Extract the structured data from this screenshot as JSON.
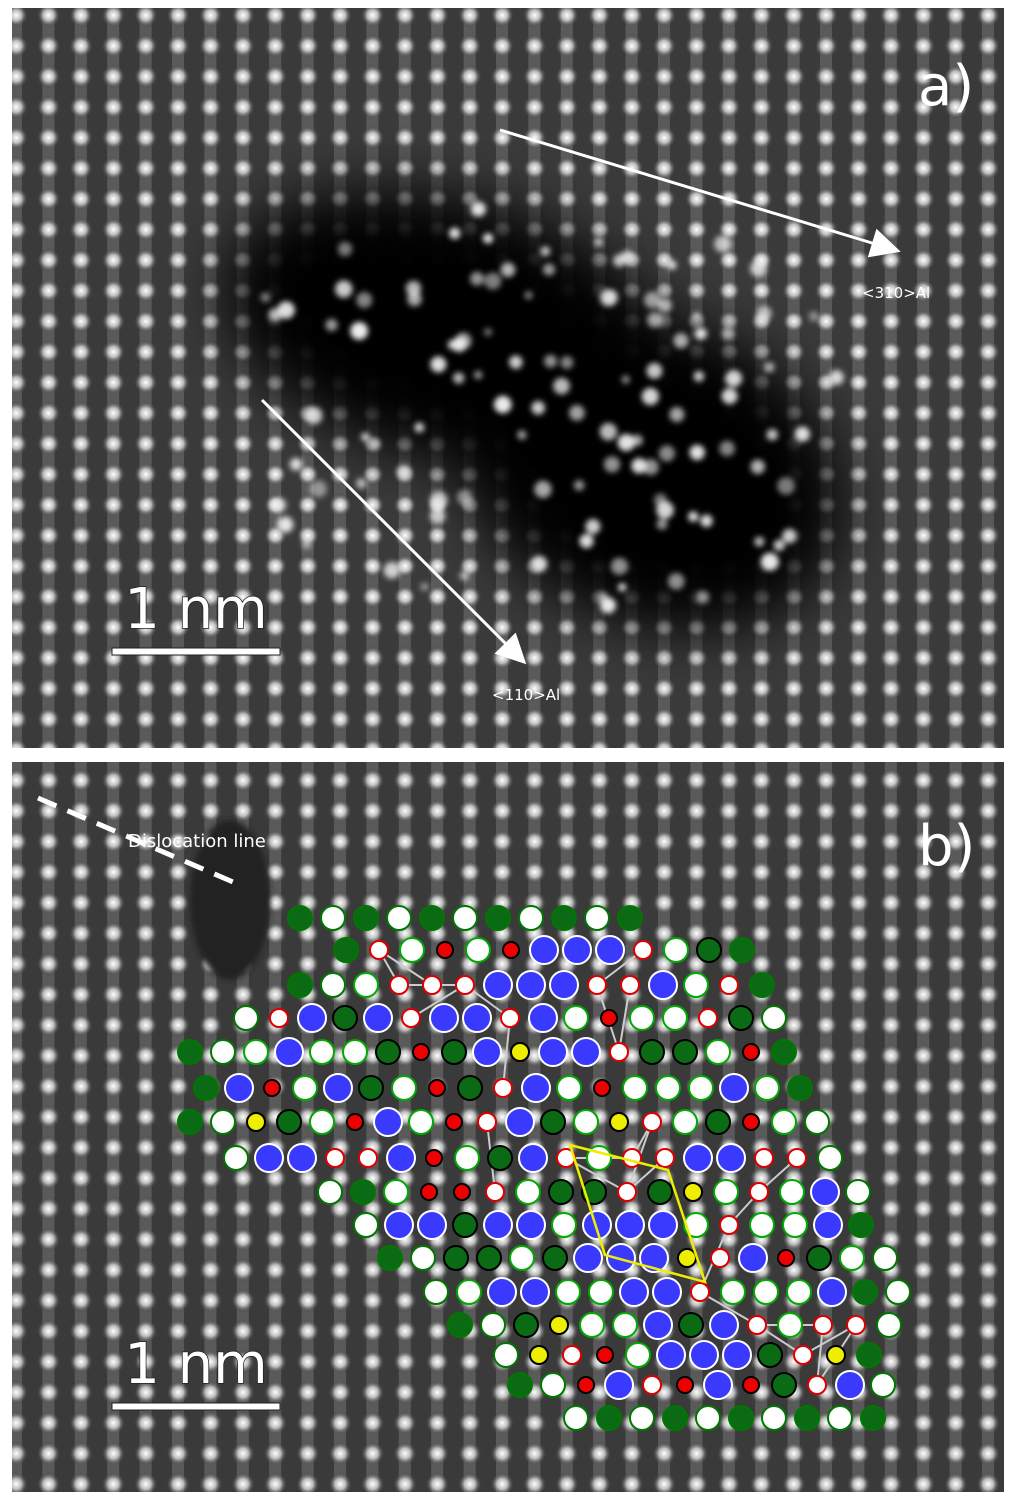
{
  "panels": [
    {
      "label": "a)",
      "annotations": [
        "<310>Al",
        "<110>Al"
      ],
      "scale_bar": "1 nm"
    },
    {
      "label": "b)",
      "annotations": [
        "Dislocation line"
      ],
      "scale_bar": "1 nm"
    }
  ]
}
